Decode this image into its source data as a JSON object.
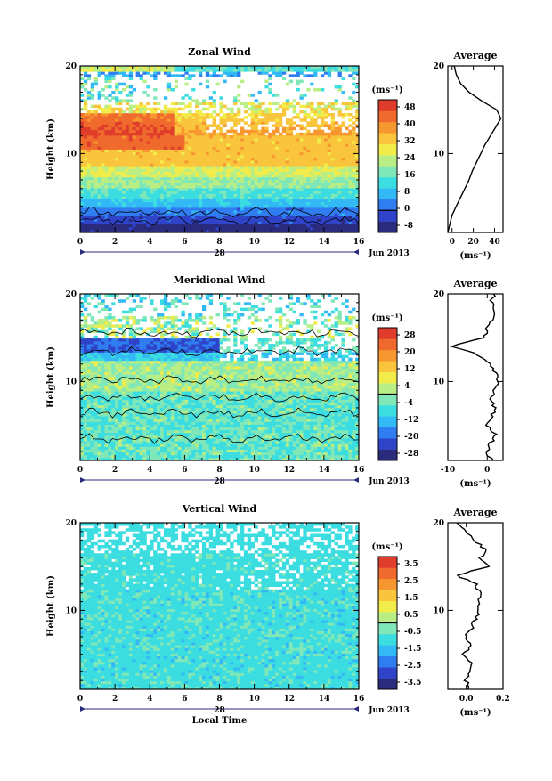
{
  "colors": [
    "#2b2b7e",
    "#2f44c8",
    "#2f7df0",
    "#33b9f5",
    "#3bdde0",
    "#7fe7b8",
    "#b9ee84",
    "#f2ec4a",
    "#f9c53c",
    "#f7972f",
    "#f06a2d",
    "#e03c2b"
  ],
  "shared": {
    "x_ticks": [
      "0",
      "2",
      "4",
      "6",
      "8",
      "10",
      "12",
      "14",
      "16"
    ],
    "x_range": [
      0,
      16
    ],
    "y_ticks": [
      "10",
      "20"
    ],
    "y_range": [
      1,
      20
    ],
    "ylabel": "Height (km)",
    "date_day": "28",
    "date_month": "Jun 2013",
    "xlabel": "Local Time",
    "unit_label": "(ms⁻¹)",
    "avg_title": "Average",
    "avg_unit": "(ms⁻¹)"
  },
  "panels": [
    {
      "title": "Zonal Wind",
      "cbar_labels": [
        "48",
        "40",
        "32",
        "24",
        "16",
        "8",
        "0",
        "-8"
      ],
      "avg_ticks": [
        "0",
        "20",
        "40"
      ],
      "show_date_label": true,
      "show_xlabel": false
    },
    {
      "title": "Meridional Wind",
      "cbar_labels": [
        "28",
        "20",
        "12",
        "4",
        "-4",
        "-12",
        "-20",
        "-28"
      ],
      "avg_ticks": [
        "-10",
        "0"
      ],
      "show_date_label": true,
      "show_xlabel": false
    },
    {
      "title": "Vertical Wind",
      "cbar_labels": [
        "3.5",
        "2.5",
        "1.5",
        "0.5",
        "-0.5",
        "-1.5",
        "-2.5",
        "-3.5"
      ],
      "avg_ticks": [
        "0.0",
        "0.2"
      ],
      "show_date_label": true,
      "show_xlabel": true
    }
  ],
  "chart_data": [
    {
      "type": "heatmap",
      "title": "Zonal Wind",
      "xlabel": "",
      "ylabel": "Height (km)",
      "xlim": [
        0,
        16
      ],
      "ylim": [
        1,
        20
      ],
      "zlim": [
        -8,
        48
      ],
      "profile_heights_km": [
        1,
        2,
        3,
        4,
        5,
        6,
        7,
        8,
        9,
        10,
        11,
        12,
        13,
        14,
        15,
        16,
        17,
        18,
        19,
        20
      ],
      "profile_values": [
        -4,
        -2,
        0,
        4,
        8,
        12,
        16,
        19,
        23,
        27,
        31,
        36,
        41,
        46,
        42,
        28,
        16,
        8,
        4,
        2
      ],
      "average_profile": {
        "title": "Average",
        "xlim": [
          -4,
          48
        ]
      }
    },
    {
      "type": "heatmap",
      "title": "Meridional Wind",
      "xlabel": "",
      "ylabel": "Height (km)",
      "xlim": [
        0,
        16
      ],
      "ylim": [
        1,
        20
      ],
      "zlim": [
        -28,
        28
      ],
      "profile_heights_km": [
        1,
        2,
        3,
        4,
        5,
        6,
        7,
        8,
        9,
        10,
        11,
        12,
        13,
        14,
        15,
        16,
        17,
        18,
        19,
        20
      ],
      "profile_values": [
        1,
        0,
        1,
        2,
        0,
        1,
        2,
        1,
        2,
        3,
        2,
        1,
        -2,
        -9,
        -1,
        0,
        1,
        2,
        1,
        2
      ],
      "average_profile": {
        "title": "Average",
        "xlim": [
          -10,
          4
        ]
      }
    },
    {
      "type": "heatmap",
      "title": "Vertical Wind",
      "xlabel": "Local Time",
      "ylabel": "Height (km)",
      "xlim": [
        0,
        16
      ],
      "ylim": [
        1,
        20
      ],
      "zlim": [
        -3.5,
        3.5
      ],
      "profile_heights_km": [
        1,
        2,
        3,
        4,
        5,
        6,
        7,
        8,
        9,
        10,
        11,
        12,
        13,
        14,
        15,
        16,
        17,
        18,
        19,
        20
      ],
      "profile_values": [
        0.02,
        0.0,
        0.01,
        0.03,
        -0.01,
        0.02,
        0.0,
        0.03,
        0.05,
        0.07,
        0.06,
        0.08,
        0.05,
        -0.05,
        0.12,
        0.08,
        0.1,
        0.05,
        0.0,
        -0.06
      ],
      "average_profile": {
        "title": "Average",
        "xlim": [
          -0.1,
          0.2
        ]
      }
    }
  ]
}
